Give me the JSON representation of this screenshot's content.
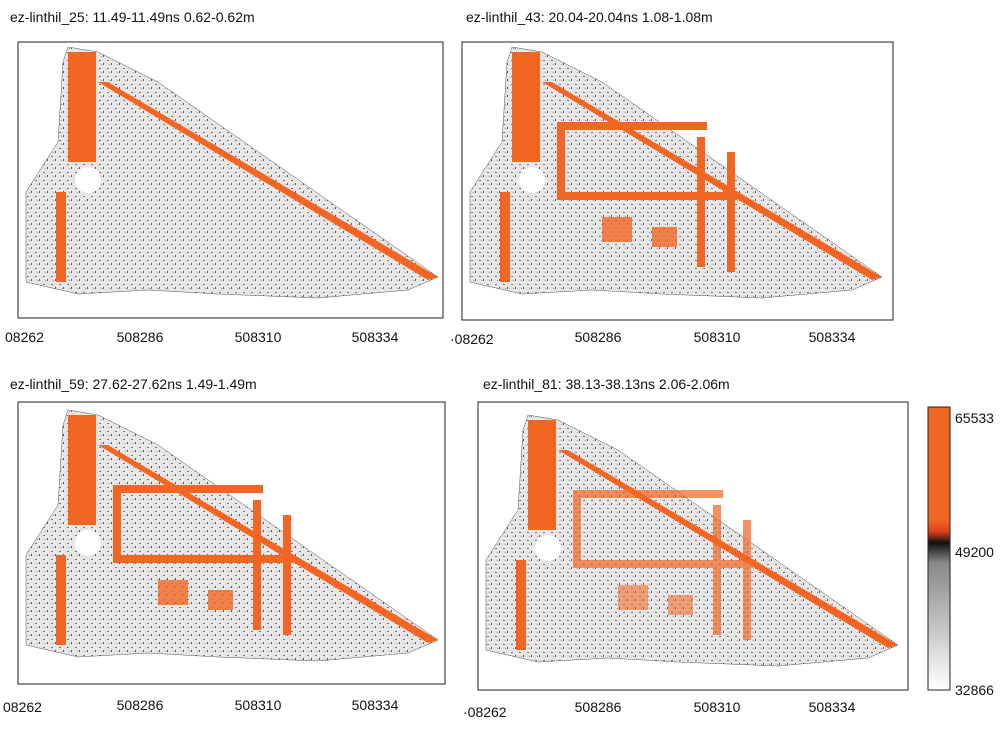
{
  "panels": [
    {
      "title": "ez-linthil_25:  11.49-11.49ns  0.62-0.62m",
      "xticks": [
        "08262",
        "508286",
        "508310",
        "508334"
      ]
    },
    {
      "title": "ez-linthil_43:  20.04-20.04ns  1.08-1.08m",
      "xticks": [
        "·08262",
        "508286",
        "508310",
        "508334"
      ]
    },
    {
      "title": "ez-linthil_59:  27.62-27.62ns  1.49-1.49m",
      "xticks": [
        "08262",
        "508286",
        "508310",
        "508334"
      ]
    },
    {
      "title": "ez-linthil_81:  38.13-38.13ns  2.06-2.06m",
      "xticks": [
        "·08262",
        "508286",
        "508310",
        "508334"
      ]
    }
  ],
  "colorbar": {
    "labels": [
      "65533",
      "49200",
      "32866"
    ]
  }
}
